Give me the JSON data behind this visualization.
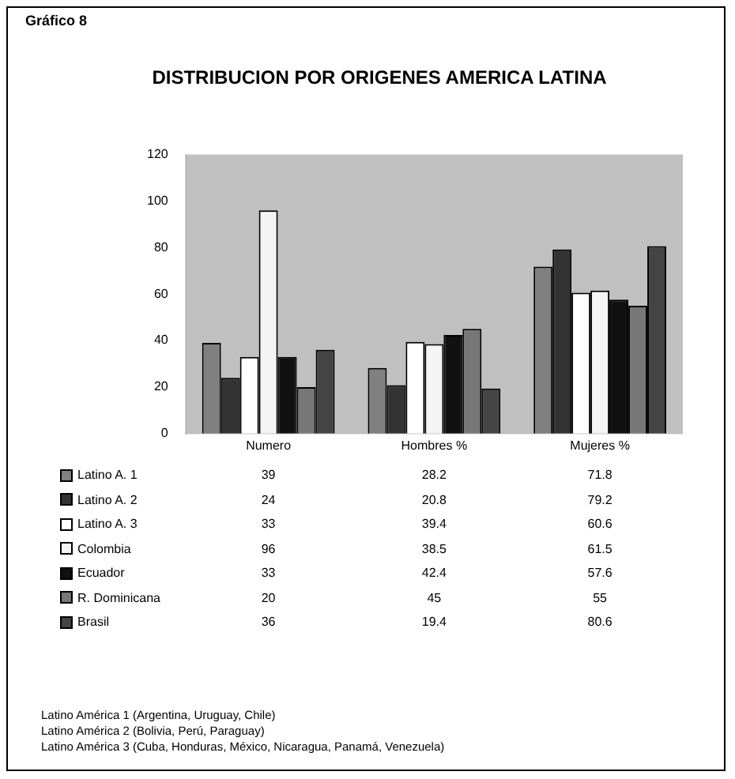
{
  "chart_data": {
    "type": "bar",
    "title": "DISTRIBUCION POR ORIGENES AMERICA LATINA",
    "subtitle": "Gráfico 8",
    "categories": [
      "Numero",
      "Hombres %",
      "Mujeres %"
    ],
    "series": [
      {
        "name": "Latino A. 1",
        "color": "#808080",
        "values": [
          39,
          28.2,
          71.8
        ]
      },
      {
        "name": "Latino A. 2",
        "color": "#333333",
        "values": [
          24,
          20.8,
          79.2
        ]
      },
      {
        "name": "Latino A. 3",
        "color": "#ffffff",
        "values": [
          33,
          39.4,
          60.6
        ]
      },
      {
        "name": "Colombia",
        "color": "#f4f4f4",
        "values": [
          96,
          38.5,
          61.5
        ]
      },
      {
        "name": "Ecuador",
        "color": "#111111",
        "values": [
          33,
          42.4,
          57.6
        ]
      },
      {
        "name": "R. Dominicana",
        "color": "#777777",
        "values": [
          20,
          45,
          55
        ]
      },
      {
        "name": "Brasil",
        "color": "#444444",
        "values": [
          36,
          19.4,
          80.6
        ]
      }
    ],
    "ylim": [
      0,
      120
    ],
    "yticks": [
      0,
      20,
      40,
      60,
      80,
      100,
      120
    ],
    "grid": false,
    "legend": "bottom left",
    "data_labels": true,
    "annotations": [
      "Latino América 1 (Argentina, Uruguay, Chile)",
      "Latino América 2 (Bolivia, Perú, Paraguay)",
      "Latino América 3 (Cuba, Honduras, México, Nicaragua, Panamá, Venezuela)"
    ]
  }
}
